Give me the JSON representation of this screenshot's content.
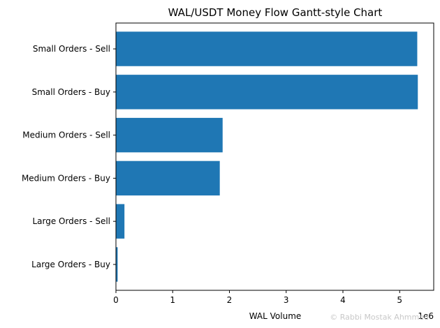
{
  "chart_data": {
    "type": "bar",
    "orientation": "horizontal",
    "title": "WAL/USDT Money Flow Gantt-style Chart",
    "xlabel": "WAL Volume",
    "ylabel": "",
    "x_offset_label": "1e6",
    "xlim": [
      0,
      5.6
    ],
    "xticks": [
      0,
      1,
      2,
      3,
      4,
      5
    ],
    "x_multiplier": 1000000,
    "bar_color": "#1f77b4",
    "grid": false,
    "categories": [
      "Large Orders - Buy",
      "Large Orders - Sell",
      "Medium Orders - Buy",
      "Medium Orders - Sell",
      "Small Orders - Buy",
      "Small Orders - Sell"
    ],
    "values": [
      0.03,
      0.15,
      1.83,
      1.88,
      5.32,
      5.31
    ]
  },
  "watermark": "© Rabbi Mostak Ahmmed"
}
